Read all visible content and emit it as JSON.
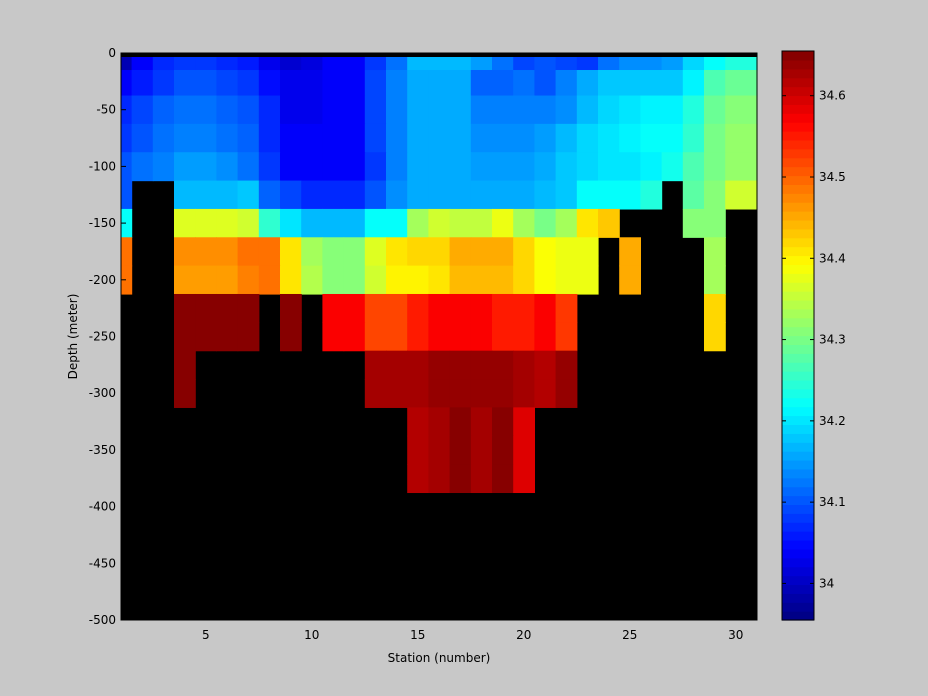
{
  "chart_data": {
    "type": "heatmap",
    "title": "",
    "xlabel": "Station (number)",
    "ylabel": "Depth (meter)",
    "xlim": [
      1,
      31
    ],
    "ylim": [
      -500,
      0
    ],
    "x_ticks": [
      5,
      10,
      15,
      20,
      25,
      30
    ],
    "y_ticks": [
      0,
      -50,
      -100,
      -150,
      -200,
      -250,
      -300,
      -350,
      -400,
      -450,
      -500
    ],
    "colorbar": {
      "colormap": "jet",
      "clim": [
        33.955,
        34.655
      ],
      "ticks": [
        34,
        34.1,
        34.2,
        34.3,
        34.4,
        34.5,
        34.6
      ]
    },
    "background_color": "#000000",
    "stations": [
      1,
      2,
      3,
      4,
      5,
      6,
      7,
      8,
      9,
      10,
      11,
      12,
      13,
      14,
      15,
      16,
      17,
      18,
      19,
      20,
      21,
      22,
      23,
      24,
      25,
      26,
      27,
      28,
      29,
      30
    ],
    "depth_levels": [
      -5,
      -25,
      -50,
      -75,
      -100,
      -125,
      -150,
      -175,
      -200,
      -225,
      -250,
      -275,
      -300,
      -325,
      -350,
      -375,
      -400,
      -425,
      -450,
      -475
    ],
    "values": [
      [
        33.99,
        34.04,
        34.07,
        34.08,
        34.08,
        34.07,
        34.06,
        34.03,
        34.01,
        34.02,
        34.04,
        34.04,
        34.08,
        34.12,
        34.17,
        34.17,
        34.17,
        34.15,
        34.12,
        34.09,
        34.1,
        34.09,
        34.08,
        34.12,
        34.14,
        34.14,
        34.15,
        34.19,
        34.22,
        34.24
      ],
      [
        34.04,
        34.06,
        34.08,
        34.1,
        34.1,
        34.09,
        34.08,
        34.05,
        34.03,
        34.03,
        34.04,
        34.04,
        34.09,
        34.13,
        34.16,
        34.16,
        34.16,
        34.11,
        34.11,
        34.12,
        34.1,
        34.13,
        34.16,
        34.18,
        34.18,
        34.18,
        34.18,
        34.21,
        34.27,
        34.29
      ],
      [
        34.07,
        34.09,
        34.11,
        34.12,
        34.12,
        34.11,
        34.1,
        34.07,
        34.03,
        34.03,
        34.04,
        34.04,
        34.09,
        34.13,
        34.16,
        34.16,
        34.16,
        34.13,
        34.13,
        34.13,
        34.13,
        34.14,
        34.17,
        34.19,
        34.2,
        34.21,
        34.21,
        34.24,
        34.29,
        34.31
      ],
      [
        34.08,
        34.1,
        34.12,
        34.13,
        34.13,
        34.12,
        34.11,
        34.07,
        34.04,
        34.04,
        34.04,
        34.04,
        34.09,
        34.13,
        34.16,
        34.16,
        34.16,
        34.14,
        34.14,
        34.14,
        34.15,
        34.17,
        34.19,
        34.2,
        34.21,
        34.22,
        34.22,
        34.25,
        34.3,
        34.32
      ],
      [
        34.1,
        34.12,
        34.13,
        34.15,
        34.15,
        34.14,
        34.12,
        34.08,
        34.04,
        34.04,
        34.04,
        34.04,
        34.08,
        34.13,
        34.16,
        34.16,
        34.16,
        34.15,
        34.15,
        34.15,
        34.16,
        34.18,
        34.19,
        34.2,
        34.2,
        34.21,
        34.23,
        34.27,
        34.3,
        34.32
      ],
      [
        34.1,
        null,
        null,
        34.17,
        34.17,
        34.17,
        34.18,
        34.11,
        34.09,
        34.07,
        34.07,
        34.07,
        34.1,
        34.14,
        34.16,
        34.16,
        34.16,
        34.16,
        34.16,
        34.16,
        34.17,
        34.18,
        34.22,
        34.22,
        34.22,
        34.24,
        null,
        34.28,
        34.31,
        34.36
      ],
      [
        34.22,
        null,
        null,
        34.37,
        34.37,
        34.37,
        34.36,
        34.25,
        34.2,
        34.17,
        34.17,
        34.17,
        34.22,
        34.22,
        34.33,
        34.36,
        34.35,
        34.35,
        34.38,
        34.33,
        34.3,
        34.33,
        34.41,
        34.43,
        null,
        null,
        null,
        34.31,
        34.31,
        null
      ],
      [
        34.49,
        null,
        null,
        34.47,
        34.47,
        34.47,
        34.49,
        34.49,
        34.41,
        34.33,
        34.31,
        34.31,
        34.37,
        34.41,
        34.42,
        34.42,
        34.45,
        34.45,
        34.45,
        34.42,
        34.39,
        34.38,
        34.38,
        null,
        34.45,
        null,
        null,
        null,
        34.33,
        null
      ],
      [
        34.49,
        null,
        null,
        34.46,
        34.46,
        34.46,
        34.48,
        34.49,
        34.41,
        34.34,
        34.31,
        34.31,
        34.36,
        34.4,
        34.4,
        34.41,
        34.44,
        34.44,
        34.44,
        34.42,
        34.39,
        34.38,
        34.38,
        null,
        34.45,
        null,
        null,
        null,
        34.33,
        null
      ],
      [
        null,
        null,
        null,
        34.65,
        34.65,
        34.65,
        34.65,
        null,
        34.65,
        null,
        34.57,
        34.57,
        34.52,
        34.52,
        34.55,
        34.57,
        34.57,
        34.57,
        34.55,
        34.55,
        34.57,
        34.53,
        null,
        null,
        null,
        null,
        null,
        null,
        34.42,
        null
      ],
      [
        null,
        null,
        null,
        34.65,
        34.65,
        34.65,
        34.65,
        null,
        34.65,
        null,
        34.57,
        34.57,
        34.52,
        34.52,
        34.55,
        34.57,
        34.57,
        34.57,
        34.55,
        34.55,
        34.57,
        34.53,
        null,
        null,
        null,
        null,
        null,
        null,
        34.42,
        null
      ],
      [
        null,
        null,
        null,
        34.65,
        null,
        null,
        null,
        null,
        null,
        null,
        null,
        null,
        34.63,
        34.63,
        34.63,
        34.64,
        34.64,
        34.64,
        34.64,
        34.63,
        34.62,
        34.64,
        null,
        null,
        null,
        null,
        null,
        null,
        null,
        null
      ],
      [
        null,
        null,
        null,
        34.65,
        null,
        null,
        null,
        null,
        null,
        null,
        null,
        null,
        34.63,
        34.63,
        34.63,
        34.64,
        34.64,
        34.64,
        34.64,
        34.63,
        34.62,
        34.64,
        null,
        null,
        null,
        null,
        null,
        null,
        null,
        null
      ],
      [
        null,
        null,
        null,
        null,
        null,
        null,
        null,
        null,
        null,
        null,
        null,
        null,
        null,
        null,
        34.62,
        34.63,
        34.65,
        34.63,
        34.65,
        34.59,
        null,
        null,
        null,
        null,
        null,
        null,
        null,
        null,
        null,
        null
      ],
      [
        null,
        null,
        null,
        null,
        null,
        null,
        null,
        null,
        null,
        null,
        null,
        null,
        null,
        null,
        34.62,
        34.63,
        34.65,
        34.63,
        34.65,
        34.59,
        null,
        null,
        null,
        null,
        null,
        null,
        null,
        null,
        null,
        null
      ],
      [
        null,
        null,
        null,
        null,
        null,
        null,
        null,
        null,
        null,
        null,
        null,
        null,
        null,
        null,
        34.62,
        34.63,
        34.65,
        34.63,
        34.65,
        34.59,
        null,
        null,
        null,
        null,
        null,
        null,
        null,
        null,
        null,
        null
      ],
      [
        null,
        null,
        null,
        null,
        null,
        null,
        null,
        null,
        null,
        null,
        null,
        null,
        null,
        null,
        null,
        null,
        null,
        null,
        null,
        null,
        null,
        null,
        null,
        null,
        null,
        null,
        null,
        null,
        null,
        null
      ],
      [
        null,
        null,
        null,
        null,
        null,
        null,
        null,
        null,
        null,
        null,
        null,
        null,
        null,
        null,
        null,
        null,
        null,
        null,
        null,
        null,
        null,
        null,
        null,
        null,
        null,
        null,
        null,
        null,
        null,
        null
      ],
      [
        null,
        null,
        null,
        null,
        null,
        null,
        null,
        null,
        null,
        null,
        null,
        null,
        null,
        null,
        null,
        null,
        null,
        null,
        null,
        null,
        null,
        null,
        null,
        null,
        null,
        null,
        null,
        null,
        null,
        null
      ],
      [
        null,
        null,
        null,
        null,
        null,
        null,
        null,
        null,
        null,
        null,
        null,
        null,
        null,
        null,
        null,
        null,
        null,
        null,
        null,
        null,
        null,
        null,
        null,
        null,
        null,
        null,
        null,
        null,
        null,
        null
      ]
    ]
  }
}
